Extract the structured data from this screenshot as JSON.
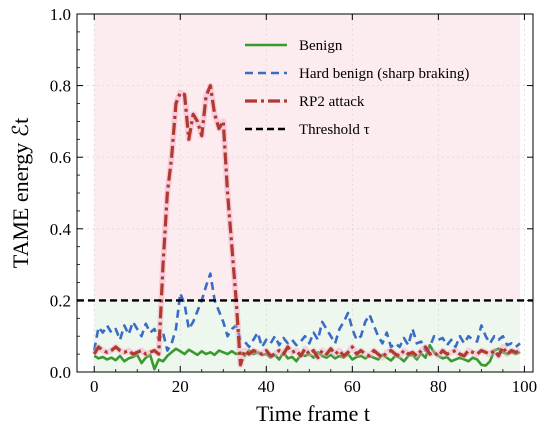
{
  "chart_data": {
    "type": "line",
    "xlabel": "Time frame t",
    "ylabel": "TAME energy ℰt",
    "xlim": [
      -4,
      102
    ],
    "ylim": [
      0,
      1.0
    ],
    "x_ticks": [
      0,
      20,
      40,
      60,
      80,
      100
    ],
    "y_ticks": [
      0.0,
      0.2,
      0.4,
      0.6,
      0.8,
      1.0
    ],
    "x_tick_labels": [
      "0",
      "20",
      "40",
      "60",
      "80",
      "100"
    ],
    "y_tick_labels": [
      "0.0",
      "0.2",
      "0.4",
      "0.6",
      "0.8",
      "1.0"
    ],
    "threshold": 0.2,
    "grid": true,
    "legend_position": "top-center",
    "background": {
      "above_threshold_color": "#fdecef",
      "below_threshold_color": "#eef7ee"
    },
    "series": [
      {
        "name": "Benign",
        "style": "solid",
        "color": "#3a9a2e",
        "x": [
          0,
          1,
          2,
          3,
          4,
          5,
          6,
          7,
          8,
          9,
          10,
          11,
          12,
          13,
          14,
          15,
          16,
          17,
          18,
          19,
          20,
          21,
          22,
          23,
          24,
          25,
          26,
          27,
          28,
          29,
          30,
          31,
          32,
          33,
          34,
          35,
          36,
          37,
          38,
          39,
          40,
          41,
          42,
          43,
          44,
          45,
          46,
          47,
          48,
          49,
          50,
          51,
          52,
          53,
          54,
          55,
          56,
          57,
          58,
          59,
          60,
          61,
          62,
          63,
          64,
          65,
          66,
          67,
          68,
          69,
          70,
          71,
          72,
          73,
          74,
          75,
          76,
          77,
          78,
          79,
          80,
          81,
          82,
          83,
          84,
          85,
          86,
          87,
          88,
          89,
          90,
          91,
          92,
          93,
          94,
          95,
          96,
          97,
          98,
          99
        ],
        "y": [
          0.045,
          0.038,
          0.042,
          0.035,
          0.04,
          0.033,
          0.045,
          0.03,
          0.038,
          0.042,
          0.048,
          0.025,
          0.04,
          0.048,
          0.008,
          0.035,
          0.03,
          0.045,
          0.055,
          0.065,
          0.058,
          0.05,
          0.062,
          0.055,
          0.048,
          0.058,
          0.05,
          0.055,
          0.048,
          0.06,
          0.055,
          0.05,
          0.058,
          0.05,
          0.055,
          0.045,
          0.06,
          0.05,
          0.055,
          0.048,
          0.05,
          0.04,
          0.048,
          0.035,
          0.055,
          0.038,
          0.042,
          0.03,
          0.048,
          0.045,
          0.05,
          0.04,
          0.055,
          0.045,
          0.04,
          0.048,
          0.038,
          0.045,
          0.04,
          0.05,
          0.035,
          0.042,
          0.045,
          0.038,
          0.045,
          0.04,
          0.035,
          0.048,
          0.04,
          0.032,
          0.045,
          0.04,
          0.03,
          0.045,
          0.048,
          0.035,
          0.052,
          0.04,
          0.075,
          0.055,
          0.045,
          0.038,
          0.042,
          0.03,
          0.035,
          0.04,
          0.035,
          0.03,
          0.04,
          0.035,
          0.02,
          0.018,
          0.03,
          0.06,
          0.065,
          0.055,
          0.05,
          0.055,
          0.05,
          0.055
        ]
      },
      {
        "name": "Hard benign (sharp braking)",
        "style": "dashed",
        "color": "#3b6cc4",
        "x": [
          0,
          1,
          2,
          3,
          4,
          5,
          6,
          7,
          8,
          9,
          10,
          11,
          12,
          13,
          14,
          15,
          16,
          17,
          18,
          19,
          20,
          21,
          22,
          23,
          24,
          25,
          26,
          27,
          28,
          29,
          30,
          31,
          32,
          33,
          34,
          35,
          36,
          37,
          38,
          39,
          40,
          41,
          42,
          43,
          44,
          45,
          46,
          47,
          48,
          49,
          50,
          51,
          52,
          53,
          54,
          55,
          56,
          57,
          58,
          59,
          60,
          61,
          62,
          63,
          64,
          65,
          66,
          67,
          68,
          69,
          70,
          71,
          72,
          73,
          74,
          75,
          76,
          77,
          78,
          79,
          80,
          81,
          82,
          83,
          84,
          85,
          86,
          87,
          88,
          89,
          90,
          91,
          92,
          93,
          94,
          95,
          96,
          97,
          98,
          99
        ],
        "y": [
          0.06,
          0.125,
          0.11,
          0.13,
          0.11,
          0.12,
          0.09,
          0.13,
          0.105,
          0.14,
          0.12,
          0.1,
          0.135,
          0.11,
          0.12,
          0.09,
          0.11,
          0.06,
          0.08,
          0.12,
          0.22,
          0.19,
          0.12,
          0.14,
          0.17,
          0.2,
          0.24,
          0.275,
          0.2,
          0.17,
          0.14,
          0.1,
          0.12,
          0.13,
          0.09,
          0.085,
          0.07,
          0.09,
          0.11,
          0.07,
          0.09,
          0.08,
          0.1,
          0.075,
          0.095,
          0.08,
          0.09,
          0.075,
          0.085,
          0.1,
          0.08,
          0.11,
          0.09,
          0.14,
          0.12,
          0.1,
          0.08,
          0.12,
          0.14,
          0.165,
          0.12,
          0.09,
          0.1,
          0.14,
          0.16,
          0.13,
          0.1,
          0.08,
          0.11,
          0.07,
          0.08,
          0.07,
          0.095,
          0.075,
          0.12,
          0.08,
          0.085,
          0.06,
          0.07,
          0.1,
          0.09,
          0.095,
          0.075,
          0.09,
          0.07,
          0.1,
          0.08,
          0.1,
          0.09,
          0.085,
          0.13,
          0.1,
          0.08,
          0.1,
          0.09,
          0.1,
          0.075,
          0.08,
          0.07,
          0.08
        ]
      },
      {
        "name": "RP2 attack",
        "style": "dashdot",
        "color": "#b03a2e",
        "x": [
          0,
          1,
          2,
          3,
          4,
          5,
          6,
          7,
          8,
          9,
          10,
          11,
          12,
          13,
          14,
          15,
          16,
          17,
          18,
          19,
          20,
          21,
          22,
          23,
          24,
          25,
          26,
          27,
          28,
          29,
          30,
          31,
          32,
          33,
          34,
          35,
          36,
          37,
          38,
          39,
          40,
          41,
          42,
          43,
          44,
          45,
          46,
          47,
          48,
          49,
          50,
          51,
          52,
          53,
          54,
          55,
          56,
          57,
          58,
          59,
          60,
          61,
          62,
          63,
          64,
          65,
          66,
          67,
          68,
          69,
          70,
          71,
          72,
          73,
          74,
          75,
          76,
          77,
          78,
          79,
          80,
          81,
          82,
          83,
          84,
          85,
          86,
          87,
          88,
          89,
          90,
          91,
          92,
          93,
          94,
          95,
          96,
          97,
          98,
          99
        ],
        "y": [
          0.05,
          0.07,
          0.06,
          0.055,
          0.06,
          0.07,
          0.06,
          0.055,
          0.06,
          0.05,
          0.055,
          0.06,
          0.05,
          0.055,
          0.06,
          0.05,
          0.3,
          0.5,
          0.6,
          0.75,
          0.78,
          0.775,
          0.65,
          0.72,
          0.7,
          0.66,
          0.77,
          0.8,
          0.72,
          0.68,
          0.7,
          0.5,
          0.35,
          0.2,
          0.02,
          0.06,
          0.05,
          0.06,
          0.055,
          0.05,
          0.06,
          0.045,
          0.05,
          0.06,
          0.05,
          0.07,
          0.055,
          0.06,
          0.045,
          0.065,
          0.05,
          0.06,
          0.04,
          0.06,
          0.05,
          0.065,
          0.05,
          0.06,
          0.045,
          0.055,
          0.07,
          0.05,
          0.06,
          0.05,
          0.045,
          0.06,
          0.05,
          0.04,
          0.055,
          0.06,
          0.05,
          0.045,
          0.06,
          0.05,
          0.055,
          0.045,
          0.06,
          0.07,
          0.05,
          0.055,
          0.045,
          0.06,
          0.05,
          0.055,
          0.06,
          0.05,
          0.045,
          0.06,
          0.055,
          0.05,
          0.06,
          0.055,
          0.05,
          0.06,
          0.045,
          0.07,
          0.05,
          0.06,
          0.055,
          0.06
        ]
      },
      {
        "name": "Threshold τ",
        "style": "dashed-black",
        "color": "#000000",
        "x": [
          -4,
          102
        ],
        "y": [
          0.2,
          0.2
        ]
      }
    ]
  }
}
